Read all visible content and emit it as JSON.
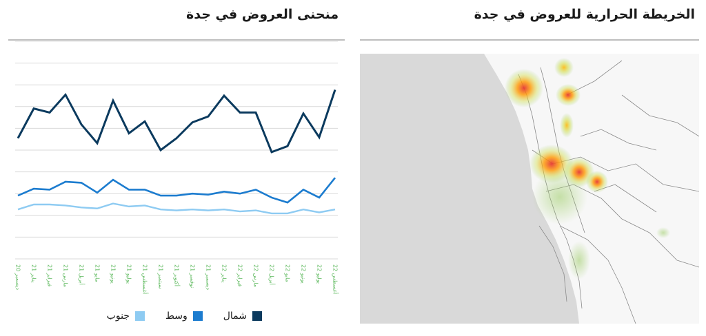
{
  "chart_panel": {
    "title": "منحنى العروض في جدة"
  },
  "map_panel": {
    "title": "الخريطة الحرارية للعروض في جدة"
  },
  "colors": {
    "north": "#0b3a5e",
    "center": "#1c7ccf",
    "south": "#8ecbf2",
    "tick_label": "#5cb85c",
    "grid": "#d9d9d9",
    "map_land": "#f7f7f7",
    "map_sea": "#d9d9d9",
    "road": "#8a8a8a"
  },
  "chart_data": {
    "type": "line",
    "categories": [
      "20 ديسمبر",
      "21 يناير",
      "21 فبراير",
      "21 مارس",
      "21 أبريل",
      "21 مايو",
      "21 يونيو",
      "21 يوليو",
      "21 أغسطس",
      "21 سبتمبر",
      "21 أكتوبر",
      "21 نوفمبر",
      "21 ديسمبر",
      "22 يناير",
      "22 فبراير",
      "22 مارس",
      "22 أبريل",
      "22 مايو",
      "22 يونيو",
      "22 يوليو",
      "22 أغسطس"
    ],
    "series": [
      {
        "name": "شمال",
        "values": [
          122,
          152,
          148,
          166,
          136,
          117,
          160,
          127,
          139,
          110,
          122,
          138,
          144,
          165,
          148,
          148,
          108,
          114,
          147,
          123,
          171
        ]
      },
      {
        "name": "وسط",
        "values": [
          64,
          71,
          70,
          78,
          77,
          67,
          80,
          70,
          70,
          64,
          64,
          66,
          65,
          68,
          66,
          70,
          62,
          57,
          70,
          62,
          82
        ]
      },
      {
        "name": "جنوب",
        "values": [
          50,
          55,
          55,
          54,
          52,
          51,
          56,
          53,
          54,
          50,
          49,
          50,
          49,
          50,
          48,
          49,
          46,
          46,
          50,
          47,
          50
        ]
      }
    ],
    "ylim": [
      0,
      220
    ],
    "grid": true,
    "legend_position": "bottom"
  },
  "legend": {
    "items": [
      {
        "key": "north",
        "label": "شمال"
      },
      {
        "key": "center",
        "label": "وسط"
      },
      {
        "key": "south",
        "label": "جنوب"
      }
    ]
  }
}
